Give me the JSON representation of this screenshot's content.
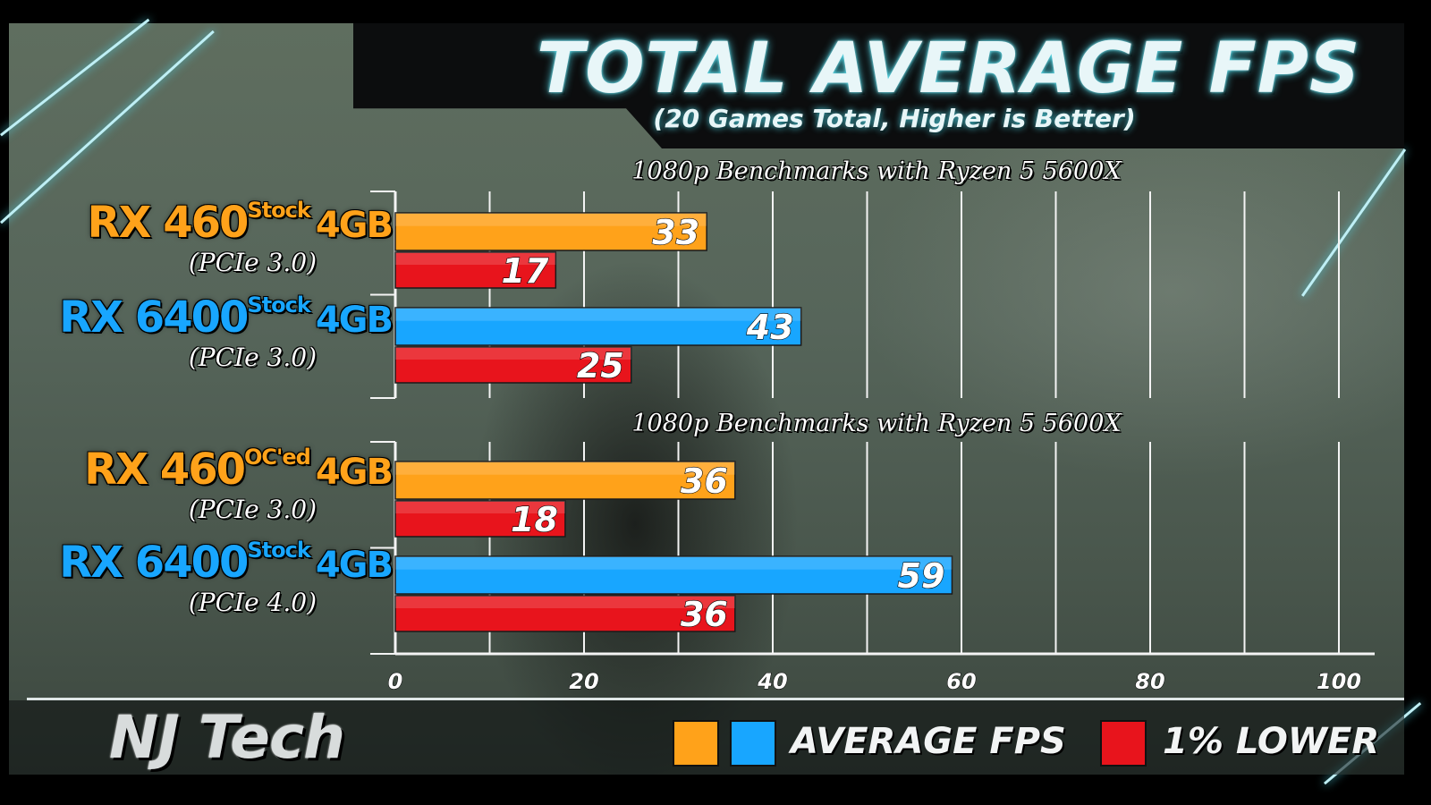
{
  "title": "TOTAL AVERAGE FPS",
  "subtitle": "(20 Games Total, Higher is Better)",
  "brand": "NJ Tech",
  "legend": {
    "average_label": "AVERAGE FPS",
    "lower_label": "1% LOWER",
    "colors": {
      "orange": "#ffa21a",
      "blue": "#18a6ff",
      "red": "#e8141c"
    }
  },
  "chart_data": {
    "type": "bar",
    "orientation": "horizontal",
    "xlim": [
      0,
      100
    ],
    "xticks": [
      0,
      20,
      40,
      60,
      80,
      100
    ],
    "grid": true,
    "groups": [
      {
        "title": "1080p Benchmarks with Ryzen 5 5600X",
        "gpus": [
          {
            "name": "RX 460",
            "variant": "Stock",
            "memory": "4GB",
            "bus": "(PCIe 3.0)",
            "color": "#ffa21a",
            "avg": 33,
            "low": 17
          },
          {
            "name": "RX 6400",
            "variant": "Stock",
            "memory": "4GB",
            "bus": "(PCIe 3.0)",
            "color": "#18a6ff",
            "avg": 43,
            "low": 25
          }
        ]
      },
      {
        "title": "1080p Benchmarks with Ryzen 5 5600X",
        "gpus": [
          {
            "name": "RX 460",
            "variant": "OC'ed",
            "memory": "4GB",
            "bus": "(PCIe 3.0)",
            "color": "#ffa21a",
            "avg": 36,
            "low": 18
          },
          {
            "name": "RX 6400",
            "variant": "Stock",
            "memory": "4GB",
            "bus": "(PCIe 4.0)",
            "color": "#18a6ff",
            "avg": 59,
            "low": 36
          }
        ]
      }
    ]
  }
}
